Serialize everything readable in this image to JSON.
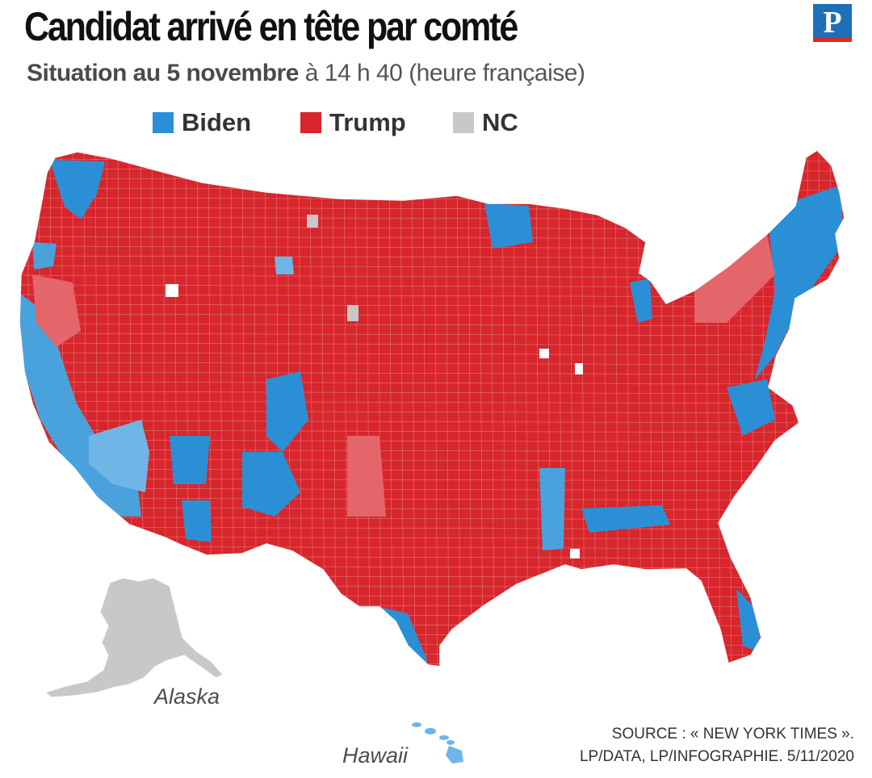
{
  "header": {
    "title": "Candidat arrivé en tête par comté",
    "subtitle_bold": "Situation au 5 novembre",
    "subtitle_rest": " à 14 h 40 (heure française)",
    "logo_letter": "P"
  },
  "legend": {
    "items": [
      {
        "label": "Biden",
        "color": "#2b8fd6"
      },
      {
        "label": "Trump",
        "color": "#d7262c"
      },
      {
        "label": "NC",
        "color": "#c8c8c8"
      }
    ]
  },
  "map": {
    "labels": {
      "alaska": "Alaska",
      "hawaii": "Hawaii"
    },
    "colors": {
      "trump": "#d7262c",
      "trump_light": "#e4656a",
      "biden": "#2b8fd6",
      "biden_light": "#6fb6e6",
      "nc": "#c8c8c8",
      "border": "#ffffff"
    }
  },
  "source": {
    "line1": "SOURCE : « NEW YORK TIMES ».",
    "line2": "LP/DATA, LP/INFOGRAPHIE.  5/11/2020"
  }
}
